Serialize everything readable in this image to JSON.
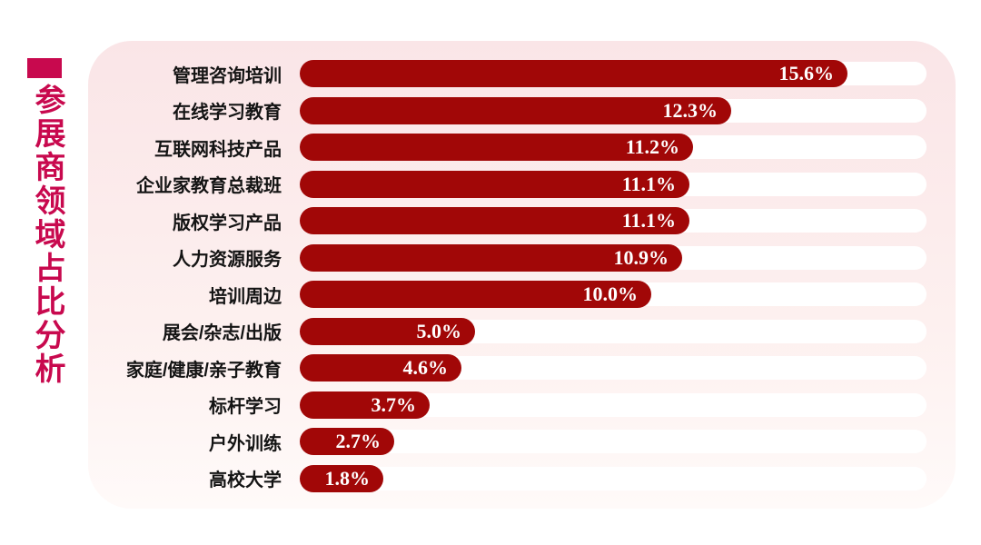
{
  "page": {
    "background_color": "#FFFFFF"
  },
  "sidebar_title": {
    "text": "参展商领域占比分析",
    "accent_color": "#C8094E"
  },
  "panel": {
    "background_top_color": "#FAE5E7",
    "background_bottom_color": "#FFFAF9"
  },
  "chart_data": {
    "type": "bar",
    "orientation": "horizontal",
    "title": "参展商领域占比分析",
    "categories": [
      "管理咨询培训",
      "在线学习教育",
      "互联网科技产品",
      "企业家教育总裁班",
      "版权学习产品",
      "人力资源服务",
      "培训周边",
      "展会/杂志/出版",
      "家庭/健康/亲子教育",
      "标杆学习",
      "户外训练",
      "高校大学"
    ],
    "values": [
      15.6,
      12.3,
      11.2,
      11.1,
      11.1,
      10.9,
      10.0,
      5.0,
      4.6,
      3.7,
      2.7,
      1.8
    ],
    "value_labels": [
      "15.6%",
      "12.3%",
      "11.2%",
      "11.1%",
      "11.1%",
      "10.9%",
      "10.0%",
      "5.0%",
      "4.6%",
      "3.7%",
      "2.7%",
      "1.8%"
    ],
    "value_suffix": "%",
    "xlim": [
      0,
      17.8
    ],
    "grid": false,
    "legend": false,
    "bar_color": "#A10707",
    "track_color": "#FFFFFF",
    "label_color": "#141414",
    "value_text_color": "#FFFFFF"
  }
}
